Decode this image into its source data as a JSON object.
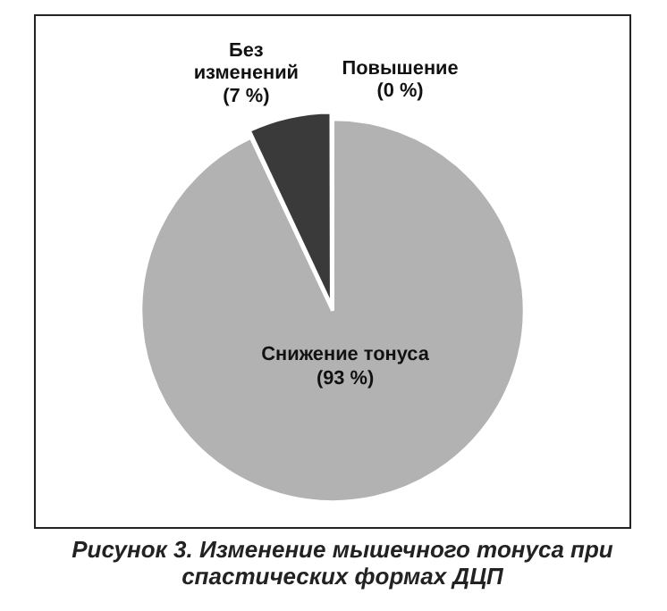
{
  "chart_data": {
    "type": "pie",
    "title": "Рисунок 3. Изменение мышечного тонуса при спастических формах ДЦП",
    "categories": [
      "Снижение тонуса",
      "Без изменений",
      "Повышение"
    ],
    "values": [
      93,
      7,
      0
    ],
    "colors": [
      "#b2b2b2",
      "#3a3a3a",
      "#3a3a3a"
    ],
    "value_labels": [
      "(93 %)",
      "(7 %)",
      "(0 %)"
    ],
    "legend": false
  }
}
